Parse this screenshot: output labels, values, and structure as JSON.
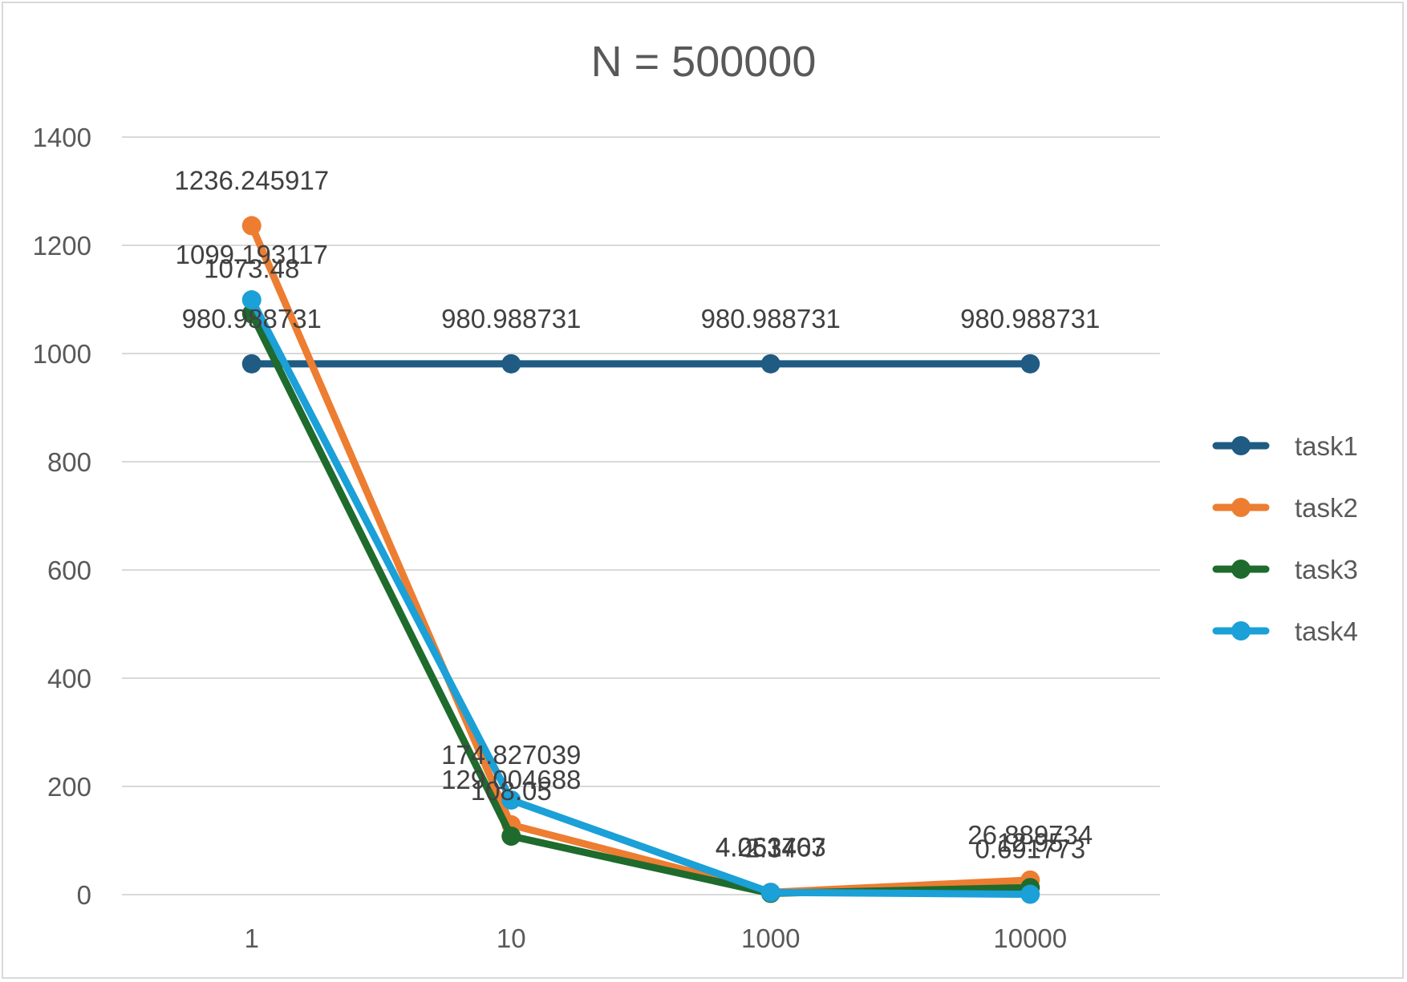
{
  "chart_data": {
    "type": "line",
    "title": "N = 500000",
    "categories": [
      "1",
      "10",
      "1000",
      "10000"
    ],
    "xlabel": "",
    "ylabel": "",
    "ylim": [
      0,
      1400
    ],
    "ytick_step": 200,
    "grid": "horizontal",
    "legend_position": "right",
    "series": [
      {
        "name": "task1",
        "color": "#1f5b82",
        "values": [
          980.988731,
          980.988731,
          980.988731,
          980.988731
        ],
        "labels": [
          "980.988731",
          "980.988731",
          "980.988731",
          "980.988731"
        ]
      },
      {
        "name": "task2",
        "color": "#ed7d31",
        "values": [
          1236.245917,
          129.004688,
          4.263403,
          26.889734
        ],
        "labels": [
          "1236.245917",
          "129.004688",
          "4.263403",
          "26.889734"
        ]
      },
      {
        "name": "task3",
        "color": "#1e6b2d",
        "values": [
          1073.48,
          108.05,
          2.34,
          12.95
        ],
        "labels": [
          "1073.48",
          "108.05",
          "2.34",
          "12.95"
        ]
      },
      {
        "name": "task4",
        "color": "#1ba0d7",
        "values": [
          1099.193117,
          174.827039,
          4.051767,
          0.691773
        ],
        "labels": [
          "1099.193117",
          "174.827039",
          "4.051767",
          "0.691773"
        ]
      }
    ]
  }
}
